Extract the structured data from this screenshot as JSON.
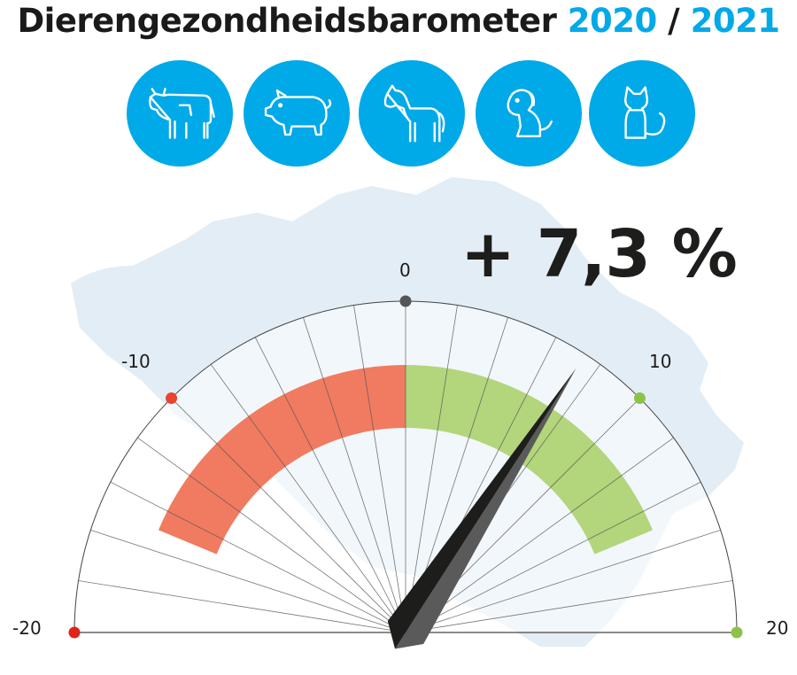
{
  "header": {
    "title_main": "Dierengezondheidsbarometer",
    "year_a": "2020",
    "separator": "/",
    "year_b": "2021"
  },
  "icons": [
    {
      "name": "cow-icon"
    },
    {
      "name": "pig-icon"
    },
    {
      "name": "horse-icon"
    },
    {
      "name": "dog-icon"
    },
    {
      "name": "cat-icon"
    }
  ],
  "colors": {
    "accent": "#00a9e8",
    "negative": "#f07b60",
    "positive": "#b3d57b",
    "map": "#e3edf5",
    "needle_dark": "#1d1d1b",
    "needle_light": "#5a5a5a"
  },
  "gauge": {
    "value_text": "+ 7,3 %",
    "value": 7.3,
    "min": -20,
    "max": 20,
    "band_min": -15,
    "band_max": 15,
    "labels": {
      "min": "-20",
      "neg_mid": "-10",
      "zero": "0",
      "pos_mid": "10",
      "max": "20"
    }
  }
}
